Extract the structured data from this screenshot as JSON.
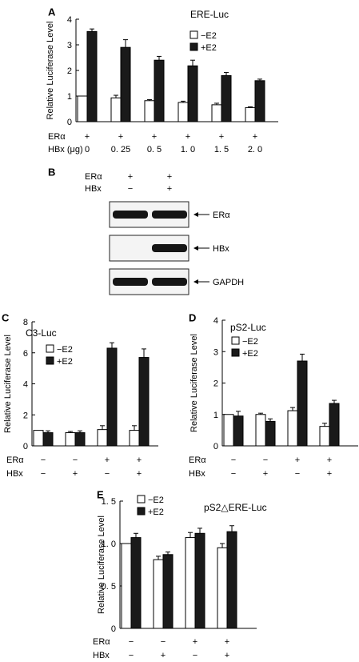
{
  "colors": {
    "minus_e2": "#ffffff",
    "plus_e2": "#1a1a1a",
    "axis": "#000000"
  },
  "chart_data": [
    {
      "panel": "A",
      "type": "bar",
      "title": "ERE-Luc",
      "ylabel": "Relative Luciferase Level",
      "ylim": [
        0,
        4
      ],
      "yticks": [
        "0",
        "1",
        "2",
        "3",
        "4"
      ],
      "row_labels": [
        "ERα",
        "HBx (μg)"
      ],
      "rows": [
        [
          "+",
          "+",
          "+",
          "+",
          "+",
          "+"
        ],
        [
          "0",
          "0. 25",
          "0. 5",
          "1. 0",
          "1. 5",
          "2. 0"
        ]
      ],
      "series": [
        {
          "name": "−E2",
          "values": [
            1.0,
            0.93,
            0.82,
            0.75,
            0.66,
            0.55
          ],
          "errors": [
            0.0,
            0.1,
            0.04,
            0.05,
            0.06,
            0.03
          ]
        },
        {
          "name": "+E2",
          "values": [
            3.52,
            2.9,
            2.4,
            2.18,
            1.8,
            1.6
          ],
          "errors": [
            0.1,
            0.3,
            0.15,
            0.22,
            0.12,
            0.06
          ]
        }
      ]
    },
    {
      "panel": "C",
      "type": "bar",
      "title": "C3-Luc",
      "ylabel": "Relative Luciferase Level",
      "ylim": [
        0,
        8
      ],
      "yticks": [
        "0",
        "2",
        "4",
        "6",
        "8"
      ],
      "row_labels": [
        "ERα",
        "HBx"
      ],
      "rows": [
        [
          "−",
          "−",
          "+",
          "+"
        ],
        [
          "−",
          "+",
          "−",
          "+"
        ]
      ],
      "series": [
        {
          "name": "−E2",
          "values": [
            1.0,
            0.85,
            1.05,
            1.0
          ],
          "errors": [
            0.0,
            0.08,
            0.25,
            0.3
          ]
        },
        {
          "name": "+E2",
          "values": [
            0.85,
            0.85,
            6.3,
            5.7
          ],
          "errors": [
            0.12,
            0.12,
            0.35,
            0.55
          ]
        }
      ]
    },
    {
      "panel": "D",
      "type": "bar",
      "title": "pS2-Luc",
      "ylabel": "Relative Luciferase Level",
      "ylim": [
        0,
        4
      ],
      "yticks": [
        "0",
        "1",
        "2",
        "3",
        "4"
      ],
      "row_labels": [
        "ERα",
        "HBx"
      ],
      "rows": [
        [
          "−",
          "−",
          "+",
          "+"
        ],
        [
          "−",
          "+",
          "−",
          "+"
        ]
      ],
      "series": [
        {
          "name": "−E2",
          "values": [
            1.0,
            1.0,
            1.12,
            0.62
          ],
          "errors": [
            0.0,
            0.04,
            0.1,
            0.1
          ]
        },
        {
          "name": "+E2",
          "values": [
            0.95,
            0.78,
            2.7,
            1.35
          ],
          "errors": [
            0.15,
            0.08,
            0.22,
            0.1
          ]
        }
      ]
    },
    {
      "panel": "E",
      "type": "bar",
      "title": "pS2△ERE-Luc",
      "ylabel": "Relative Luciferase Level",
      "ylim": [
        0,
        1.5
      ],
      "yticks": [
        "0",
        "0. 5",
        "1. 0",
        "1. 5"
      ],
      "row_labels": [
        "ERα",
        "HBx"
      ],
      "rows": [
        [
          "−",
          "−",
          "+",
          "+"
        ],
        [
          "−",
          "+",
          "−",
          "+"
        ]
      ],
      "series": [
        {
          "name": "−E2",
          "values": [
            1.0,
            0.81,
            1.07,
            0.95
          ],
          "errors": [
            0.0,
            0.04,
            0.06,
            0.05
          ]
        },
        {
          "name": "+E2",
          "values": [
            1.07,
            0.87,
            1.12,
            1.14
          ],
          "errors": [
            0.05,
            0.03,
            0.06,
            0.07
          ]
        }
      ]
    }
  ],
  "blot": {
    "panel": "B",
    "header_rows": [
      {
        "label": "ERα",
        "lanes": [
          "+",
          "+"
        ]
      },
      {
        "label": "HBx",
        "lanes": [
          "−",
          "+"
        ]
      }
    ],
    "bands": [
      {
        "label": "ERα",
        "lane_intensity": [
          1,
          1
        ]
      },
      {
        "label": "HBx",
        "lane_intensity": [
          0,
          1
        ]
      },
      {
        "label": "GAPDH",
        "lane_intensity": [
          1,
          1
        ]
      }
    ]
  }
}
